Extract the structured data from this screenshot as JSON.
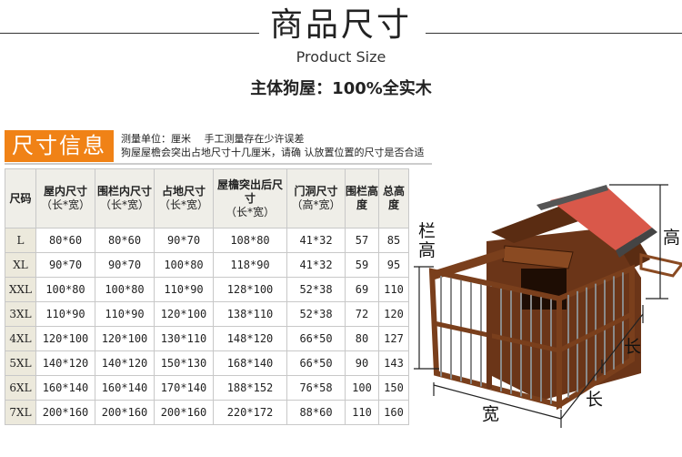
{
  "header": {
    "title": "商品尺寸",
    "subtitle": "Product Size",
    "main_line": "主体狗屋：100%全实木"
  },
  "section": {
    "badge": "尺寸信息",
    "note1": "测量单位：厘米　 手工测量存在少许误差",
    "note2": "狗屋屋檐会突出占地尺寸十几厘米，请确 认放置位置的尺寸是否合适"
  },
  "table": {
    "headers": [
      {
        "main": "尺码",
        "sub": ""
      },
      {
        "main": "屋内尺寸",
        "sub": "（长*宽）"
      },
      {
        "main": "围栏内尺寸",
        "sub": "（长*宽）"
      },
      {
        "main": "占地尺寸",
        "sub": "（长*宽）"
      },
      {
        "main": "屋檐突出后尺寸",
        "sub": "（长*宽）"
      },
      {
        "main": "门洞尺寸",
        "sub": "（高*宽）"
      },
      {
        "main": "围栏高度",
        "sub": ""
      },
      {
        "main": "总高度",
        "sub": ""
      }
    ],
    "rows": [
      [
        "L",
        "80*60",
        "80*60",
        "90*70",
        "108*80",
        "41*32",
        "57",
        "85"
      ],
      [
        "XL",
        "90*70",
        "90*70",
        "100*80",
        "118*90",
        "41*32",
        "59",
        "95"
      ],
      [
        "XXL",
        "100*80",
        "100*80",
        "110*90",
        "128*100",
        "52*38",
        "69",
        "110"
      ],
      [
        "3XL",
        "110*90",
        "110*90",
        "120*100",
        "138*110",
        "52*38",
        "72",
        "120"
      ],
      [
        "4XL",
        "120*100",
        "120*100",
        "130*110",
        "148*120",
        "66*50",
        "80",
        "127"
      ],
      [
        "5XL",
        "140*120",
        "140*120",
        "150*130",
        "168*140",
        "66*50",
        "90",
        "143"
      ],
      [
        "6XL",
        "160*140",
        "160*140",
        "170*140",
        "188*152",
        "76*58",
        "100",
        "150"
      ],
      [
        "7XL",
        "200*160",
        "200*160",
        "200*160",
        "220*172",
        "88*60",
        "110",
        "160"
      ]
    ]
  },
  "diagram": {
    "fence_height": "栏高",
    "height": "高",
    "length": "长",
    "width": "宽"
  },
  "colors": {
    "accent": "#f08216",
    "roof": "#d9584a",
    "wood": "#7a3f1c"
  }
}
